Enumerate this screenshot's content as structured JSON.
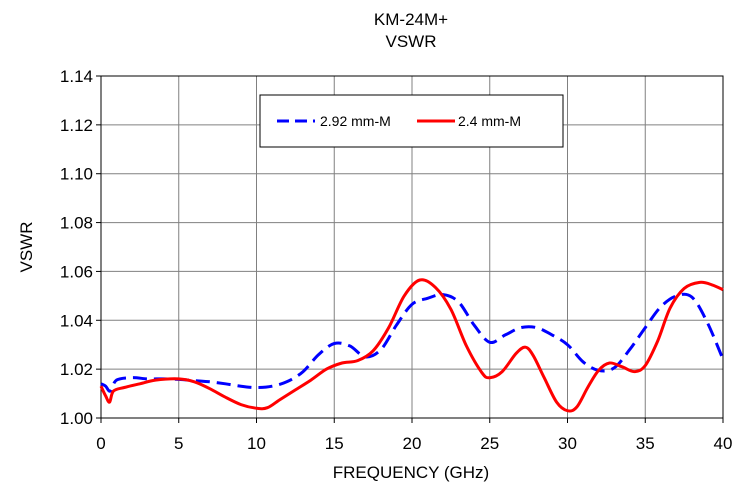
{
  "chart_data": {
    "type": "line",
    "title_lines": [
      "KM-24M+",
      "VSWR"
    ],
    "xlabel": "FREQUENCY (GHz)",
    "ylabel": "VSWR",
    "xlim": [
      0,
      40
    ],
    "ylim": [
      1.0,
      1.14
    ],
    "x_ticks": [
      0,
      5,
      10,
      15,
      20,
      25,
      30,
      35,
      40
    ],
    "y_ticks": [
      "1.00",
      "1.02",
      "1.04",
      "1.06",
      "1.08",
      "1.10",
      "1.12",
      "1.14"
    ],
    "grid": true,
    "legend_position": "top-center",
    "series": [
      {
        "name": "2.92 mm-M",
        "color": "#0000ff",
        "dash": "dashed",
        "points": [
          [
            0,
            1.014
          ],
          [
            0.3,
            1.013
          ],
          [
            0.6,
            1.011
          ],
          [
            1,
            1.0155
          ],
          [
            2,
            1.0165
          ],
          [
            3,
            1.016
          ],
          [
            4,
            1.016
          ],
          [
            5,
            1.0158
          ],
          [
            6,
            1.0153
          ],
          [
            7,
            1.0148
          ],
          [
            8,
            1.014
          ],
          [
            9,
            1.013
          ],
          [
            10,
            1.0125
          ],
          [
            11,
            1.013
          ],
          [
            12,
            1.015
          ],
          [
            13,
            1.019
          ],
          [
            14,
            1.026
          ],
          [
            15,
            1.0305
          ],
          [
            16,
            1.0295
          ],
          [
            17,
            1.025
          ],
          [
            18,
            1.028
          ],
          [
            19,
            1.038
          ],
          [
            20,
            1.0465
          ],
          [
            21,
            1.049
          ],
          [
            22,
            1.0505
          ],
          [
            23,
            1.0475
          ],
          [
            24,
            1.038
          ],
          [
            25,
            1.031
          ],
          [
            26,
            1.034
          ],
          [
            27,
            1.037
          ],
          [
            28,
            1.037
          ],
          [
            29,
            1.034
          ],
          [
            30,
            1.03
          ],
          [
            31,
            1.023
          ],
          [
            32,
            1.0195
          ],
          [
            33,
            1.0205
          ],
          [
            34,
            1.028
          ],
          [
            35,
            1.037
          ],
          [
            36,
            1.0455
          ],
          [
            37,
            1.05
          ],
          [
            38,
            1.0495
          ],
          [
            39,
            1.039
          ],
          [
            40,
            1.024
          ]
        ]
      },
      {
        "name": "2.4 mm-M",
        "color": "#ff0000",
        "dash": "solid",
        "points": [
          [
            0,
            1.013
          ],
          [
            0.3,
            1.009
          ],
          [
            0.55,
            1.0065
          ],
          [
            0.8,
            1.011
          ],
          [
            1.5,
            1.0125
          ],
          [
            2.5,
            1.014
          ],
          [
            3.5,
            1.0155
          ],
          [
            5,
            1.016
          ],
          [
            6,
            1.0148
          ],
          [
            7,
            1.012
          ],
          [
            8,
            1.0085
          ],
          [
            9,
            1.0055
          ],
          [
            10,
            1.004
          ],
          [
            10.7,
            1.0042
          ],
          [
            11.5,
            1.0075
          ],
          [
            12.5,
            1.0115
          ],
          [
            13.5,
            1.0155
          ],
          [
            14.5,
            1.02
          ],
          [
            15.5,
            1.0225
          ],
          [
            16.5,
            1.0235
          ],
          [
            17.5,
            1.0275
          ],
          [
            18.5,
            1.037
          ],
          [
            19.5,
            1.05
          ],
          [
            20.5,
            1.0565
          ],
          [
            21.5,
            1.0535
          ],
          [
            22.5,
            1.0445
          ],
          [
            23.5,
            1.0295
          ],
          [
            24.5,
            1.0185
          ],
          [
            25,
            1.0165
          ],
          [
            25.8,
            1.019
          ],
          [
            26.7,
            1.0265
          ],
          [
            27.3,
            1.029
          ],
          [
            27.8,
            1.0255
          ],
          [
            28.5,
            1.0165
          ],
          [
            29.3,
            1.0065
          ],
          [
            30,
            1.003
          ],
          [
            30.6,
            1.0045
          ],
          [
            31.3,
            1.0125
          ],
          [
            32,
            1.0195
          ],
          [
            32.7,
            1.0225
          ],
          [
            33.5,
            1.021
          ],
          [
            34.3,
            1.019
          ],
          [
            35,
            1.0215
          ],
          [
            35.8,
            1.0315
          ],
          [
            36.6,
            1.045
          ],
          [
            37.5,
            1.053
          ],
          [
            38.5,
            1.0555
          ],
          [
            39.3,
            1.0545
          ],
          [
            40,
            1.0525
          ]
        ]
      }
    ]
  }
}
